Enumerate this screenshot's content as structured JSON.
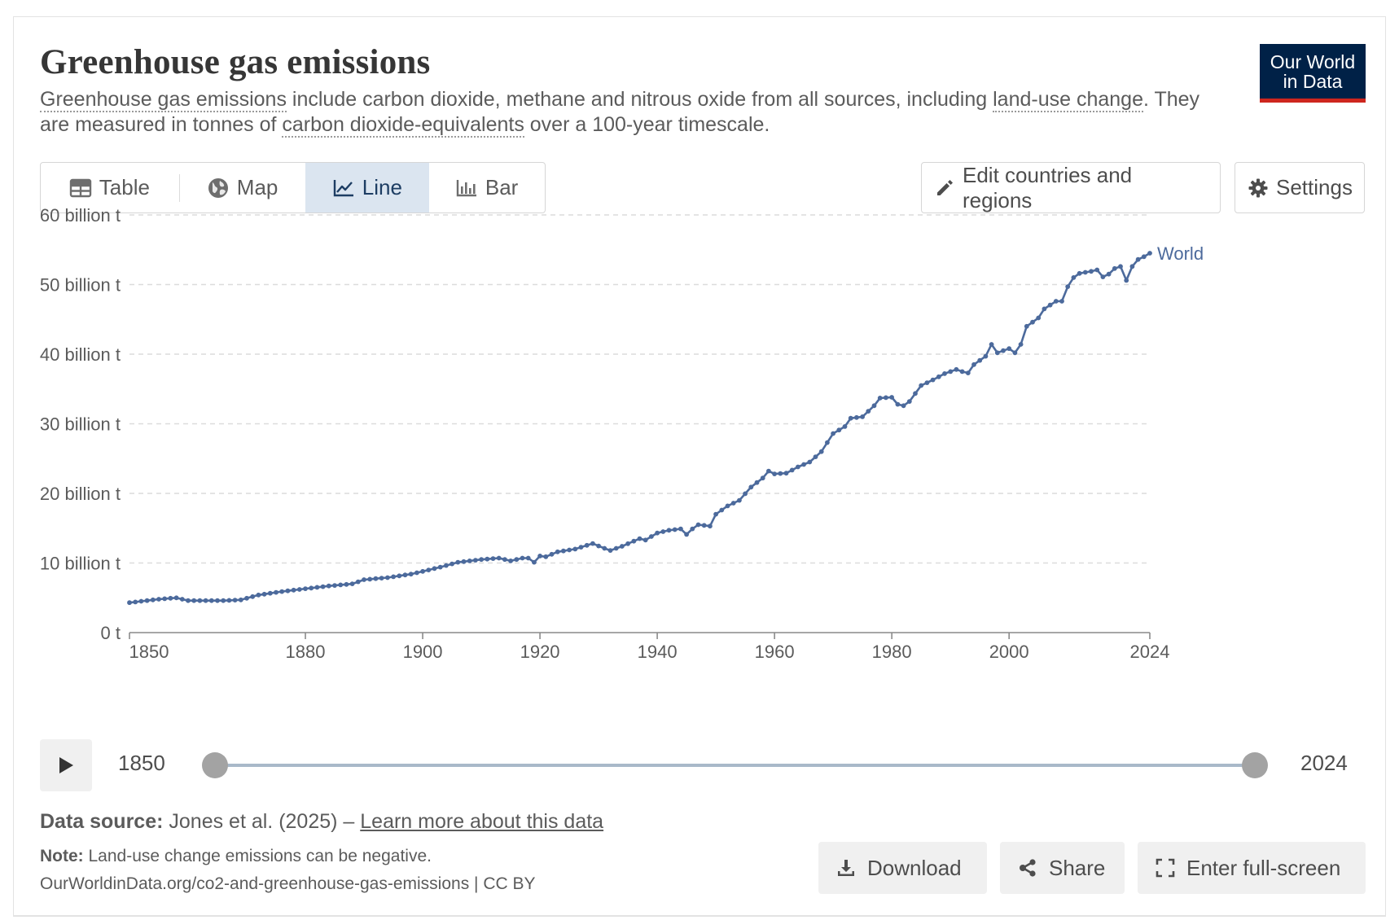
{
  "header": {
    "title": "Greenhouse gas emissions",
    "subtitle": {
      "link1": "Greenhouse gas emissions",
      "text1": " include carbon dioxide, methane and nitrous oxide from all sources, including ",
      "link2": "land-use change",
      "text2": ". They are measured in tonnes of ",
      "link3": "carbon dioxide-equivalents",
      "text3": " over a 100-year timescale."
    },
    "logo_line1": "Our World",
    "logo_line2": "in Data"
  },
  "tabs": [
    {
      "label": "Table",
      "icon": "table-icon"
    },
    {
      "label": "Map",
      "icon": "globe-icon"
    },
    {
      "label": "Line",
      "icon": "line-chart-icon",
      "active": true
    },
    {
      "label": "Bar",
      "icon": "bar-chart-icon"
    }
  ],
  "actions": {
    "edit_label": "Edit countries and regions",
    "settings_label": "Settings"
  },
  "timeline": {
    "start_label": "1850",
    "end_label": "2024"
  },
  "footer": {
    "source_label": "Data source:",
    "source_text": " Jones et al. (2025) – ",
    "source_link": "Learn more about this data",
    "note_label": "Note:",
    "note_text": " Land-use change emissions can be negative.",
    "url": "OurWorldinData.org/co2-and-greenhouse-gas-emissions | CC BY",
    "download_label": "Download",
    "share_label": "Share",
    "fullscreen_label": "Enter full-screen"
  },
  "colors": {
    "series": "#4c6a9c",
    "accent_tab_bg": "#dbe5f0",
    "logo_bg": "#002147",
    "logo_bar": "#ce261e"
  },
  "chart_data": {
    "type": "line",
    "title": "Greenhouse gas emissions",
    "xlabel": "",
    "ylabel": "",
    "xlim": [
      1850,
      2024
    ],
    "ylim": [
      0,
      60
    ],
    "y_unit": "billion t",
    "x_ticks": [
      1850,
      1880,
      1900,
      1920,
      1940,
      1960,
      1980,
      2000,
      2024
    ],
    "y_ticks": [
      {
        "value": 0,
        "label": "0 t"
      },
      {
        "value": 10,
        "label": "10 billion t"
      },
      {
        "value": 20,
        "label": "20 billion t"
      },
      {
        "value": 30,
        "label": "30 billion t"
      },
      {
        "value": 40,
        "label": "40 billion t"
      },
      {
        "value": 50,
        "label": "50 billion t"
      },
      {
        "value": 60,
        "label": "60 billion t"
      }
    ],
    "grid": true,
    "series": [
      {
        "name": "World",
        "anchors": [
          [
            1850,
            4.3
          ],
          [
            1852,
            4.5
          ],
          [
            1855,
            4.8
          ],
          [
            1858,
            5.0
          ],
          [
            1860,
            4.6
          ],
          [
            1863,
            4.6
          ],
          [
            1866,
            4.6
          ],
          [
            1869,
            4.7
          ],
          [
            1872,
            5.4
          ],
          [
            1876,
            5.9
          ],
          [
            1880,
            6.3
          ],
          [
            1884,
            6.7
          ],
          [
            1888,
            7.0
          ],
          [
            1890,
            7.6
          ],
          [
            1894,
            7.9
          ],
          [
            1898,
            8.4
          ],
          [
            1900,
            8.8
          ],
          [
            1903,
            9.4
          ],
          [
            1906,
            10.1
          ],
          [
            1910,
            10.5
          ],
          [
            1913,
            10.7
          ],
          [
            1915,
            10.3
          ],
          [
            1917,
            10.7
          ],
          [
            1918,
            10.7
          ],
          [
            1919,
            10.1
          ],
          [
            1920,
            11.0
          ],
          [
            1921,
            10.9
          ],
          [
            1923,
            11.6
          ],
          [
            1926,
            12.0
          ],
          [
            1929,
            12.8
          ],
          [
            1931,
            12.1
          ],
          [
            1932,
            11.8
          ],
          [
            1934,
            12.4
          ],
          [
            1937,
            13.5
          ],
          [
            1938,
            13.3
          ],
          [
            1940,
            14.3
          ],
          [
            1942,
            14.7
          ],
          [
            1944,
            14.9
          ],
          [
            1945,
            14.1
          ],
          [
            1946,
            14.9
          ],
          [
            1947,
            15.5
          ],
          [
            1948,
            15.4
          ],
          [
            1949,
            15.3
          ],
          [
            1950,
            17.0
          ],
          [
            1952,
            18.2
          ],
          [
            1954,
            19.0
          ],
          [
            1956,
            20.9
          ],
          [
            1958,
            22.2
          ],
          [
            1959,
            23.2
          ],
          [
            1960,
            22.8
          ],
          [
            1962,
            22.9
          ],
          [
            1964,
            23.8
          ],
          [
            1966,
            24.5
          ],
          [
            1968,
            26.0
          ],
          [
            1970,
            28.6
          ],
          [
            1972,
            29.6
          ],
          [
            1973,
            30.8
          ],
          [
            1975,
            31.0
          ],
          [
            1977,
            32.6
          ],
          [
            1978,
            33.7
          ],
          [
            1980,
            33.8
          ],
          [
            1981,
            32.8
          ],
          [
            1982,
            32.6
          ],
          [
            1983,
            33.2
          ],
          [
            1985,
            35.5
          ],
          [
            1987,
            36.3
          ],
          [
            1989,
            37.2
          ],
          [
            1991,
            37.8
          ],
          [
            1992,
            37.5
          ],
          [
            1993,
            37.3
          ],
          [
            1994,
            38.5
          ],
          [
            1996,
            39.7
          ],
          [
            1997,
            41.4
          ],
          [
            1998,
            40.2
          ],
          [
            2000,
            40.8
          ],
          [
            2001,
            40.2
          ],
          [
            2002,
            41.4
          ],
          [
            2003,
            44.0
          ],
          [
            2005,
            45.2
          ],
          [
            2006,
            46.5
          ],
          [
            2008,
            47.6
          ],
          [
            2009,
            47.6
          ],
          [
            2010,
            49.7
          ],
          [
            2011,
            51.0
          ],
          [
            2012,
            51.6
          ],
          [
            2014,
            51.9
          ],
          [
            2015,
            52.1
          ],
          [
            2016,
            51.1
          ],
          [
            2017,
            51.5
          ],
          [
            2018,
            52.3
          ],
          [
            2019,
            52.6
          ],
          [
            2020,
            50.6
          ],
          [
            2021,
            52.6
          ],
          [
            2022,
            53.6
          ],
          [
            2023,
            54.0
          ],
          [
            2024,
            54.5
          ]
        ]
      }
    ],
    "legend": "right, inline label at end of line"
  }
}
